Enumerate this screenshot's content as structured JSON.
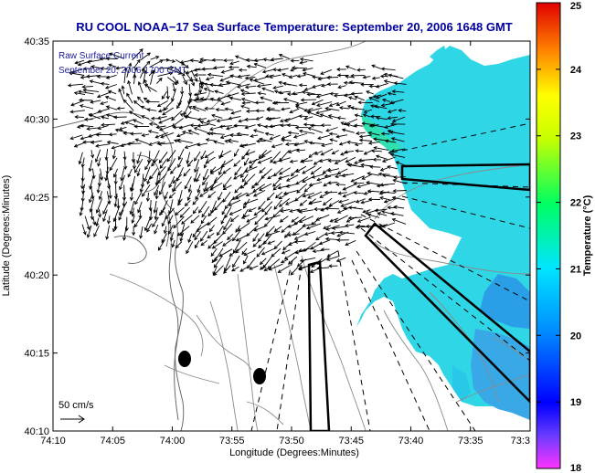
{
  "title": "RU COOL  NOAA−17  Sea Surface Temperature:  September 20, 2006 1648 GMT",
  "legend": {
    "line1": "Raw Surface Current",
    "line2": "September 20, 2006 1700 GMT",
    "scale_label": "50 cm/s"
  },
  "axes": {
    "xlabel": "Longitude (Degrees:Minutes)",
    "ylabel": "Latitude (Degrees:Minutes)",
    "xticks": [
      "74:10",
      "74:05",
      "74:00",
      "73:55",
      "73:50",
      "73:45",
      "73:40",
      "73:35",
      "73:3"
    ],
    "yticks": [
      "40:35",
      "40:30",
      "40:25",
      "40:20",
      "40:15",
      "40:10"
    ]
  },
  "colorbar": {
    "label": "Temperature (°C)",
    "ticks": [
      "25",
      "24",
      "23",
      "22",
      "21",
      "20",
      "19",
      "18"
    ],
    "range": [
      18,
      25
    ]
  },
  "colors": {
    "title": "#0000a0",
    "sst_water": "#2fd6e6",
    "land": "#ffffff",
    "vectors": "#000000"
  }
}
